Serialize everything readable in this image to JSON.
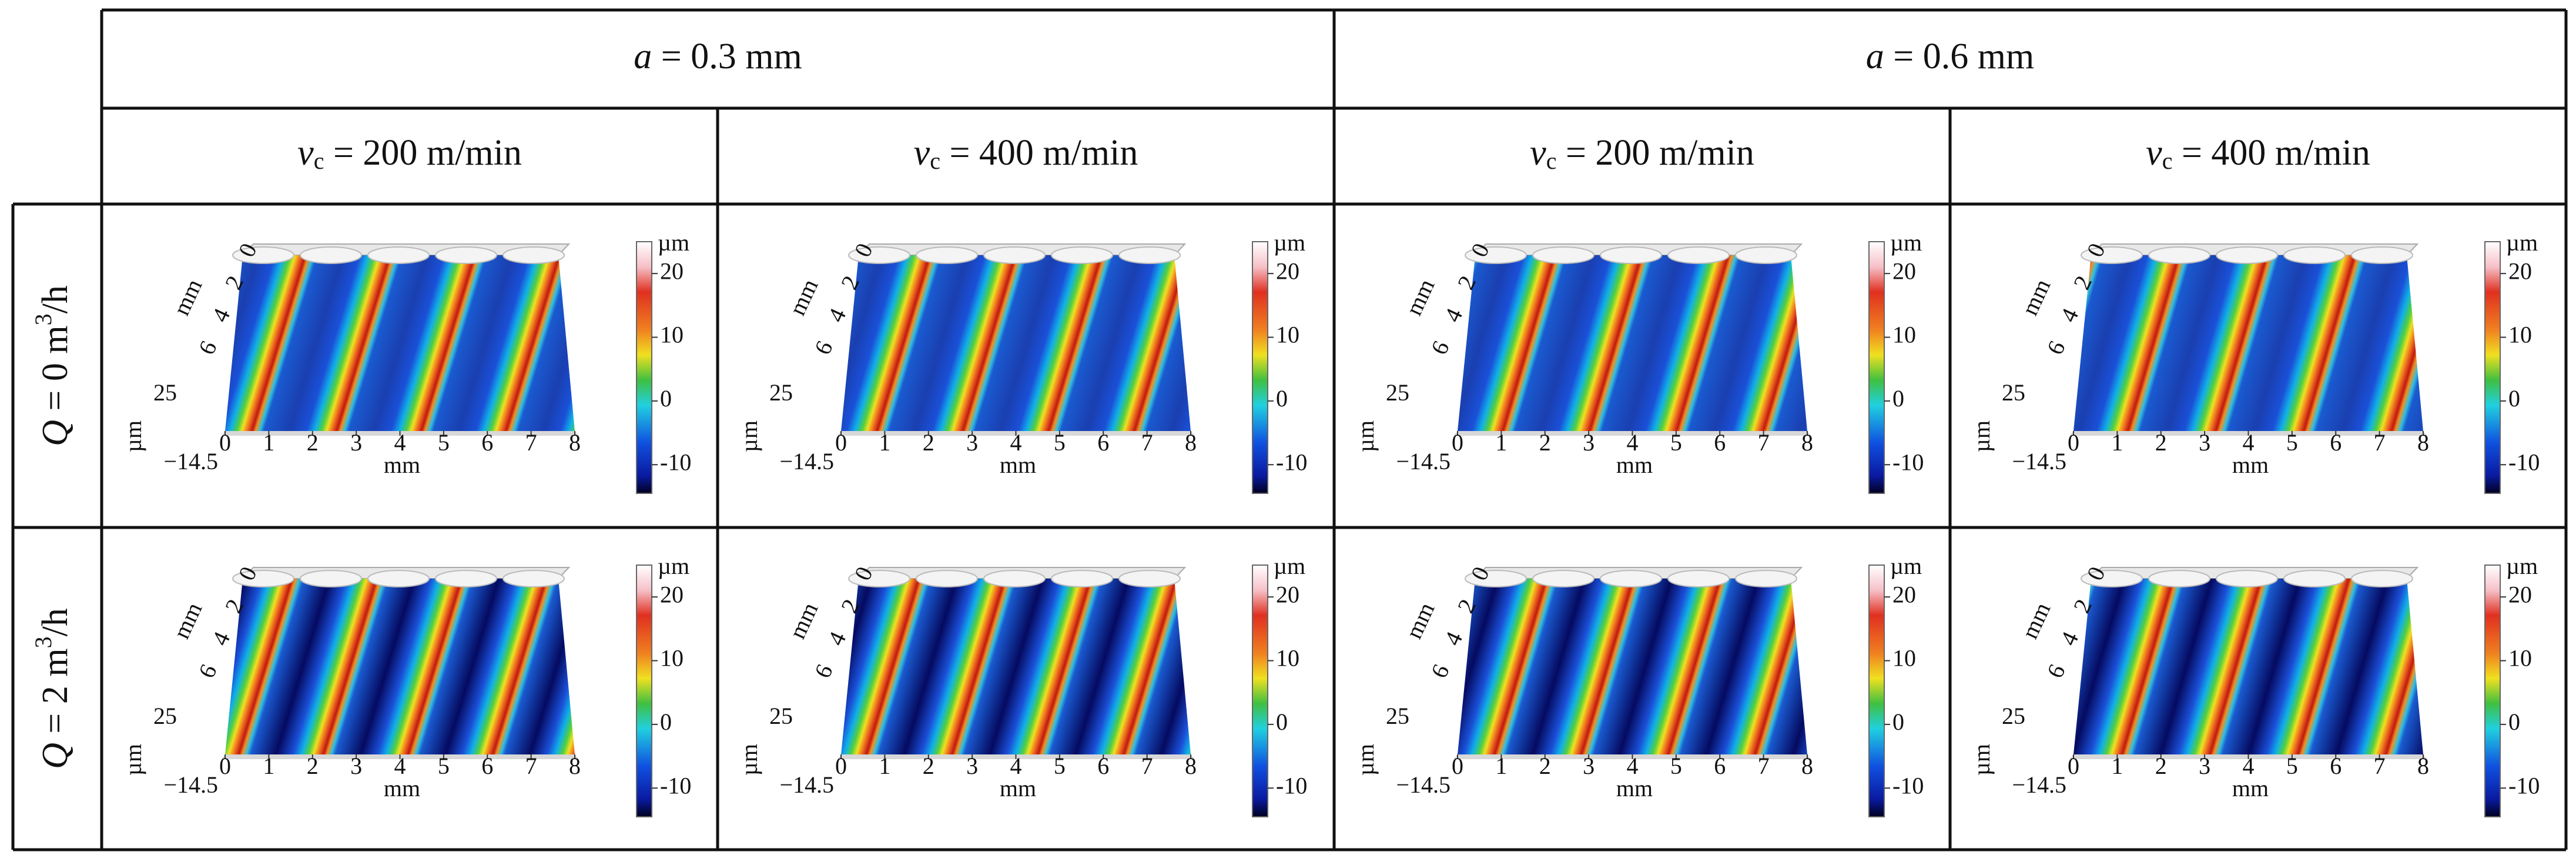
{
  "table": {
    "column_groups": [
      {
        "var": "a",
        "rest": " = 0.3 mm"
      },
      {
        "var": "a",
        "rest": " = 0.6 mm"
      }
    ],
    "columns": [
      {
        "var": "v",
        "sub": "c",
        "rest": " = 200 m/min"
      },
      {
        "var": "v",
        "sub": "c",
        "rest": " = 400 m/min"
      },
      {
        "var": "v",
        "sub": "c",
        "rest": " = 200 m/min"
      },
      {
        "var": "v",
        "sub": "c",
        "rest": " = 400 m/min"
      }
    ],
    "rows": [
      {
        "var": "Q",
        "rest": " = 0 m",
        "sup": "3",
        "tail": "/h"
      },
      {
        "var": "Q",
        "rest": " = 2 m",
        "sup": "3",
        "tail": "/h"
      }
    ]
  },
  "plot_axes": {
    "x_label": "mm",
    "x_ticks": [
      0,
      1,
      2,
      3,
      4,
      5,
      6,
      7,
      8
    ],
    "y_label": "mm",
    "y_ticks": [
      0,
      2,
      4,
      6
    ],
    "z_label": "µm",
    "z_ticks": [
      25,
      {
        "value": -14.5,
        "label": "−14.5"
      }
    ],
    "colorbar": {
      "unit": "µm",
      "lim": [
        -14.5,
        25
      ],
      "ticks": [
        20,
        10,
        0,
        -10
      ]
    }
  }
}
